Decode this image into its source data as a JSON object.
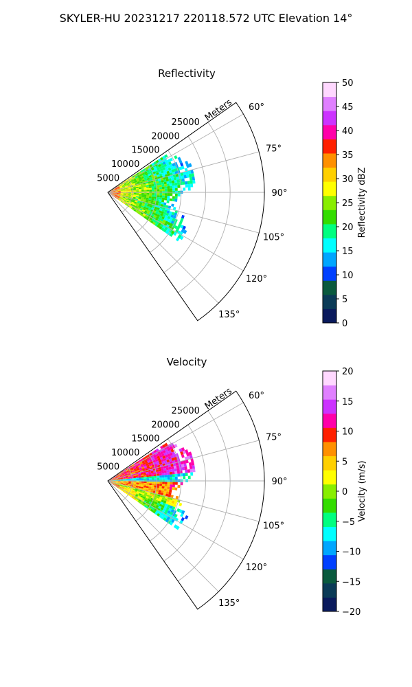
{
  "figure": {
    "suptitle": "SKYLER-HU  20231217  220118.572 UTC Elevation 14°"
  },
  "chart_data": [
    {
      "type": "heatmap",
      "projection": "polar-sector",
      "title": "Reflectivity",
      "radial_label": "Meters",
      "radial_ticks": [
        "5000",
        "10000",
        "15000",
        "20000",
        "25000"
      ],
      "radial_values": [
        5000,
        10000,
        15000,
        20000,
        25000
      ],
      "rlim": [
        0,
        32000
      ],
      "angular_ticks": [
        "60°",
        "75°",
        "90°",
        "105°",
        "120°",
        "135°"
      ],
      "angular_values": [
        60,
        75,
        90,
        105,
        120,
        135
      ],
      "thetalim": [
        55,
        145
      ],
      "grid": true,
      "data_range_m": [
        0,
        18000
      ],
      "data_extent_deg": [
        57,
        125
      ],
      "colorbar": {
        "label": "Reflectivity dBZ",
        "range": [
          0,
          50
        ],
        "ticks": [
          "0",
          "5",
          "10",
          "15",
          "20",
          "25",
          "30",
          "35",
          "40",
          "45",
          "50"
        ],
        "tick_values": [
          0,
          5,
          10,
          15,
          20,
          25,
          30,
          35,
          40,
          45,
          50
        ],
        "colors": [
          "#0a1a5c",
          "#0b3b57",
          "#0a5a3e",
          "#0040ff",
          "#00a6ff",
          "#00ffff",
          "#00ff80",
          "#33dd00",
          "#88ee00",
          "#ffff00",
          "#ffd000",
          "#ff9000",
          "#ff2000",
          "#ff00aa",
          "#cc33ff",
          "#e080ff",
          "#ffd8ff"
        ]
      }
    },
    {
      "type": "heatmap",
      "projection": "polar-sector",
      "title": "Velocity",
      "radial_label": "Meters",
      "radial_ticks": [
        "5000",
        "10000",
        "15000",
        "20000",
        "25000"
      ],
      "radial_values": [
        5000,
        10000,
        15000,
        20000,
        25000
      ],
      "rlim": [
        0,
        32000
      ],
      "angular_ticks": [
        "60°",
        "75°",
        "90°",
        "105°",
        "120°",
        "135°"
      ],
      "angular_values": [
        60,
        75,
        90,
        105,
        120,
        135
      ],
      "thetalim": [
        55,
        145
      ],
      "grid": true,
      "data_range_m": [
        0,
        18000
      ],
      "data_extent_deg": [
        57,
        125
      ],
      "colorbar": {
        "label": "Velocity (m/s)",
        "range": [
          -20,
          20
        ],
        "ticks": [
          "−20",
          "−15",
          "−10",
          "−5",
          "0",
          "5",
          "10",
          "15",
          "20"
        ],
        "tick_values": [
          -20,
          -15,
          -10,
          -5,
          0,
          5,
          10,
          15,
          20
        ],
        "colors": [
          "#0a1a5c",
          "#0b3b57",
          "#0a5a3e",
          "#0040ff",
          "#00a6ff",
          "#00ffff",
          "#00ff80",
          "#33dd00",
          "#88ee00",
          "#ffff00",
          "#ffd000",
          "#ff9000",
          "#ff2000",
          "#ff00aa",
          "#cc33ff",
          "#e080ff",
          "#ffd8ff"
        ]
      }
    }
  ]
}
